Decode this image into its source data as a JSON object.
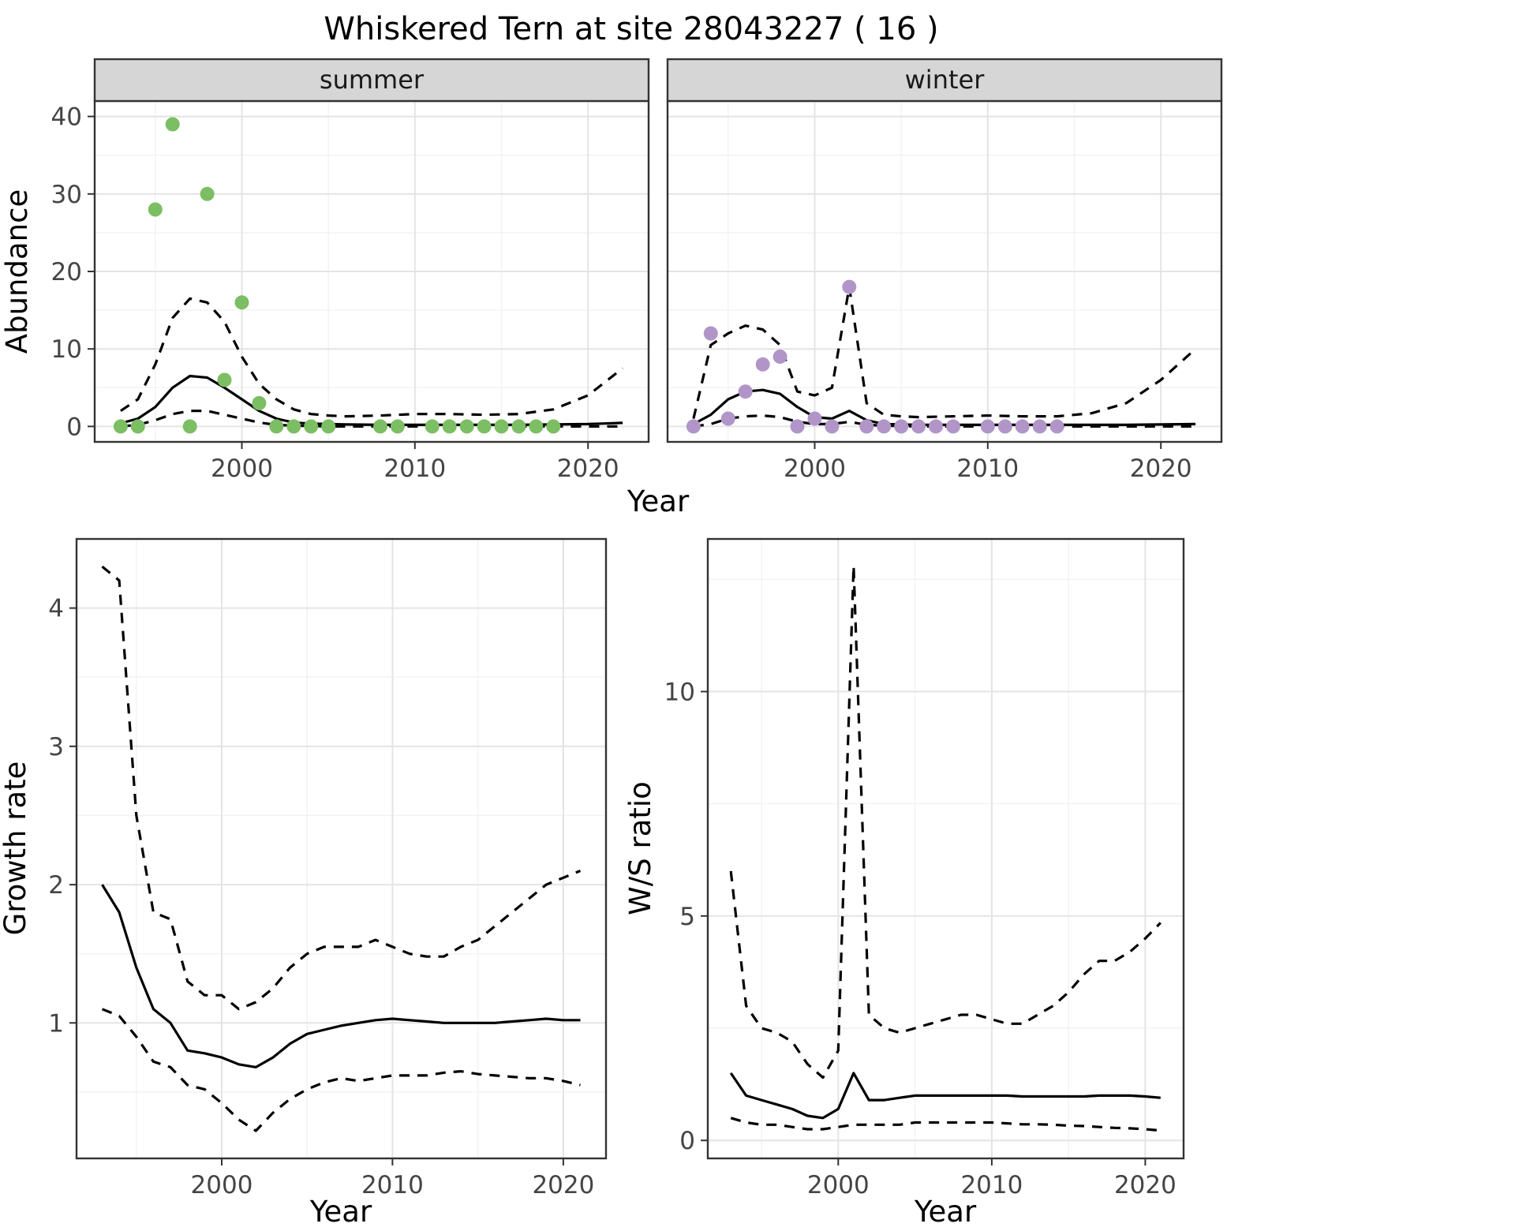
{
  "title": "Whiskered Tern at site 28043227 ( 16 )",
  "axis_labels": {
    "x_top": "Year",
    "x_bottom_left": "Year",
    "x_bottom_right": "Year",
    "y_top": "Abundance",
    "y_bottom_left": "Growth rate",
    "y_bottom_right": "W/S ratio"
  },
  "colors": {
    "summer_points": "#7cbe63",
    "winter_points": "#b195c8",
    "line": "#000000",
    "strip_bg": "#d6d6d6",
    "grid_major": "#e4e4e4",
    "grid_minor": "#f2f2f2",
    "panel_border": "#333333"
  },
  "chart_data": [
    {
      "id": "abundance-summer",
      "type": "scatter",
      "facet": "summer",
      "xlabel": "Year",
      "ylabel": "Abundance",
      "xlim": [
        1991.5,
        2023.5
      ],
      "ylim": [
        -2,
        42
      ],
      "xticks": [
        2000,
        2010,
        2020
      ],
      "yticks": [
        0,
        10,
        20,
        30,
        40
      ],
      "xticks_minor": [
        1995,
        2005,
        2015
      ],
      "yticks_minor": [
        5,
        15,
        25,
        35
      ],
      "point_color": "#7cbe63",
      "points": [
        [
          1993,
          0
        ],
        [
          1994,
          0
        ],
        [
          1995,
          28
        ],
        [
          1996,
          39
        ],
        [
          1997,
          0
        ],
        [
          1998,
          30
        ],
        [
          1999,
          6
        ],
        [
          2000,
          16
        ],
        [
          2001,
          3
        ],
        [
          2002,
          0
        ],
        [
          2003,
          0
        ],
        [
          2004,
          0
        ],
        [
          2005,
          0
        ],
        [
          2008,
          0
        ],
        [
          2009,
          0
        ],
        [
          2011,
          0
        ],
        [
          2012,
          0
        ],
        [
          2013,
          0
        ],
        [
          2014,
          0
        ],
        [
          2015,
          0
        ],
        [
          2016,
          0
        ],
        [
          2017,
          0
        ],
        [
          2018,
          0
        ]
      ],
      "series": [
        {
          "name": "mean",
          "style": "solid",
          "x": [
            1993,
            1994,
            1995,
            1996,
            1997,
            1998,
            1999,
            2000,
            2001,
            2002,
            2003,
            2004,
            2005,
            2006,
            2008,
            2010,
            2012,
            2014,
            2016,
            2018,
            2020,
            2022
          ],
          "y": [
            0.4,
            1,
            2.5,
            5,
            6.5,
            6.3,
            5,
            3.5,
            2,
            1,
            0.5,
            0.35,
            0.3,
            0.25,
            0.2,
            0.2,
            0.2,
            0.2,
            0.2,
            0.25,
            0.3,
            0.45
          ]
        },
        {
          "name": "upper-ci",
          "style": "dashed",
          "x": [
            1993,
            1994,
            1995,
            1996,
            1997,
            1998,
            1999,
            2000,
            2001,
            2002,
            2003,
            2004,
            2005,
            2006,
            2008,
            2010,
            2012,
            2014,
            2016,
            2018,
            2020,
            2022
          ],
          "y": [
            2,
            3.5,
            8,
            14,
            16.5,
            16,
            13.5,
            9,
            5.5,
            3.5,
            2.2,
            1.6,
            1.4,
            1.3,
            1.4,
            1.6,
            1.6,
            1.5,
            1.6,
            2.2,
            4,
            7.5
          ]
        },
        {
          "name": "lower-ci",
          "style": "dashed",
          "x": [
            1993,
            1994,
            1995,
            1996,
            1997,
            1998,
            1999,
            2000,
            2001,
            2002,
            2003,
            2004,
            2005,
            2006,
            2008,
            2010,
            2012,
            2014,
            2016,
            2018,
            2020,
            2022
          ],
          "y": [
            0,
            0.2,
            0.8,
            1.6,
            2,
            2,
            1.5,
            1,
            0.5,
            0.2,
            0.1,
            0.05,
            0,
            0,
            0,
            0,
            0,
            0,
            0,
            0,
            0,
            0
          ]
        }
      ]
    },
    {
      "id": "abundance-winter",
      "type": "scatter",
      "facet": "winter",
      "xlabel": "Year",
      "ylabel": "Abundance",
      "xlim": [
        1991.5,
        2023.5
      ],
      "ylim": [
        -2,
        42
      ],
      "xticks": [
        2000,
        2010,
        2020
      ],
      "yticks": [
        0,
        10,
        20,
        30,
        40
      ],
      "xticks_minor": [
        1995,
        2005,
        2015
      ],
      "yticks_minor": [
        5,
        15,
        25,
        35
      ],
      "point_color": "#b195c8",
      "points": [
        [
          1993,
          0
        ],
        [
          1994,
          12
        ],
        [
          1995,
          1
        ],
        [
          1996,
          4.5
        ],
        [
          1997,
          8
        ],
        [
          1998,
          9
        ],
        [
          1999,
          0
        ],
        [
          2000,
          1
        ],
        [
          2001,
          0
        ],
        [
          2002,
          18
        ],
        [
          2003,
          0
        ],
        [
          2004,
          0
        ],
        [
          2005,
          0
        ],
        [
          2006,
          0
        ],
        [
          2007,
          0
        ],
        [
          2008,
          0
        ],
        [
          2010,
          0
        ],
        [
          2011,
          0
        ],
        [
          2012,
          0
        ],
        [
          2013,
          0
        ],
        [
          2014,
          0
        ]
      ],
      "series": [
        {
          "name": "mean",
          "style": "solid",
          "x": [
            1993,
            1994,
            1995,
            1996,
            1997,
            1998,
            1999,
            2000,
            2001,
            2002,
            2003,
            2004,
            2005,
            2006,
            2008,
            2010,
            2012,
            2014,
            2016,
            2018,
            2020,
            2022
          ],
          "y": [
            0.3,
            1.5,
            3.5,
            4.5,
            4.7,
            4.2,
            2.5,
            1.2,
            1.0,
            2.0,
            0.8,
            0.3,
            0.25,
            0.2,
            0.2,
            0.2,
            0.2,
            0.2,
            0.2,
            0.2,
            0.25,
            0.3
          ]
        },
        {
          "name": "upper-ci",
          "style": "dashed",
          "x": [
            1993,
            1994,
            1995,
            1996,
            1997,
            1998,
            1999,
            2000,
            2001,
            2002,
            2003,
            2004,
            2005,
            2006,
            2008,
            2010,
            2012,
            2014,
            2016,
            2018,
            2020,
            2022
          ],
          "y": [
            1,
            10.5,
            12,
            13,
            12.5,
            10.5,
            4.5,
            4,
            5,
            18,
            3,
            1.5,
            1.3,
            1.2,
            1.3,
            1.4,
            1.3,
            1.3,
            1.7,
            3,
            6,
            10
          ]
        },
        {
          "name": "lower-ci",
          "style": "dashed",
          "x": [
            1993,
            1994,
            1995,
            1996,
            1997,
            1998,
            1999,
            2000,
            2001,
            2002,
            2003,
            2004,
            2005,
            2006,
            2008,
            2010,
            2012,
            2014,
            2016,
            2018,
            2020,
            2022
          ],
          "y": [
            0,
            0.3,
            1,
            1.3,
            1.4,
            1.2,
            0.6,
            0.3,
            0.3,
            0.6,
            0.2,
            0.1,
            0.05,
            0,
            0,
            0,
            0,
            0,
            0,
            0,
            0,
            0
          ]
        }
      ]
    },
    {
      "id": "growth-rate",
      "type": "line",
      "facet": null,
      "xlabel": "Year",
      "ylabel": "Growth rate",
      "xlim": [
        1991.5,
        2022.5
      ],
      "ylim": [
        0.02,
        4.5
      ],
      "xticks": [
        2000,
        2010,
        2020
      ],
      "yticks": [
        1,
        2,
        3,
        4
      ],
      "xticks_minor": [
        1995,
        2005,
        2015
      ],
      "yticks_minor": [
        0.5,
        1.5,
        2.5,
        3.5
      ],
      "series": [
        {
          "name": "mean",
          "style": "solid",
          "x": [
            1993,
            1994,
            1995,
            1996,
            1997,
            1998,
            1999,
            2000,
            2001,
            2002,
            2003,
            2004,
            2005,
            2006,
            2007,
            2008,
            2009,
            2010,
            2011,
            2012,
            2013,
            2014,
            2015,
            2016,
            2017,
            2018,
            2019,
            2020,
            2021
          ],
          "y": [
            2.0,
            1.8,
            1.4,
            1.1,
            1.0,
            0.8,
            0.78,
            0.75,
            0.7,
            0.68,
            0.75,
            0.85,
            0.92,
            0.95,
            0.98,
            1.0,
            1.02,
            1.03,
            1.02,
            1.01,
            1.0,
            1.0,
            1.0,
            1.0,
            1.01,
            1.02,
            1.03,
            1.02,
            1.02
          ]
        },
        {
          "name": "upper-ci",
          "style": "dashed",
          "x": [
            1993,
            1994,
            1995,
            1996,
            1997,
            1998,
            1999,
            2000,
            2001,
            2002,
            2003,
            2004,
            2005,
            2006,
            2007,
            2008,
            2009,
            2010,
            2011,
            2012,
            2013,
            2014,
            2015,
            2016,
            2017,
            2018,
            2019,
            2020,
            2021
          ],
          "y": [
            4.3,
            4.2,
            2.5,
            1.8,
            1.75,
            1.3,
            1.2,
            1.2,
            1.1,
            1.15,
            1.25,
            1.4,
            1.5,
            1.55,
            1.55,
            1.55,
            1.6,
            1.55,
            1.5,
            1.48,
            1.48,
            1.55,
            1.6,
            1.7,
            1.8,
            1.9,
            2.0,
            2.05,
            2.1
          ]
        },
        {
          "name": "lower-ci",
          "style": "dashed",
          "x": [
            1993,
            1994,
            1995,
            1996,
            1997,
            1998,
            1999,
            2000,
            2001,
            2002,
            2003,
            2004,
            2005,
            2006,
            2007,
            2008,
            2009,
            2010,
            2011,
            2012,
            2013,
            2014,
            2015,
            2016,
            2017,
            2018,
            2019,
            2020,
            2021
          ],
          "y": [
            1.1,
            1.05,
            0.9,
            0.72,
            0.68,
            0.55,
            0.52,
            0.42,
            0.3,
            0.22,
            0.35,
            0.45,
            0.52,
            0.57,
            0.6,
            0.58,
            0.6,
            0.62,
            0.62,
            0.62,
            0.64,
            0.65,
            0.63,
            0.62,
            0.61,
            0.6,
            0.6,
            0.58,
            0.55
          ]
        }
      ]
    },
    {
      "id": "ws-ratio",
      "type": "line",
      "facet": null,
      "xlabel": "Year",
      "ylabel": "W/S ratio",
      "xlim": [
        1991.5,
        2022.5
      ],
      "ylim": [
        -0.4,
        13.4
      ],
      "xticks": [
        2000,
        2010,
        2020
      ],
      "yticks": [
        0,
        5,
        10
      ],
      "xticks_minor": [
        1995,
        2005,
        2015
      ],
      "yticks_minor": [
        2.5,
        7.5,
        12.5
      ],
      "series": [
        {
          "name": "mean",
          "style": "solid",
          "x": [
            1993,
            1994,
            1995,
            1996,
            1997,
            1998,
            1999,
            2000,
            2001,
            2002,
            2003,
            2004,
            2005,
            2006,
            2007,
            2008,
            2009,
            2010,
            2011,
            2012,
            2013,
            2014,
            2015,
            2016,
            2017,
            2018,
            2019,
            2020,
            2021
          ],
          "y": [
            1.5,
            1.0,
            0.9,
            0.8,
            0.7,
            0.55,
            0.5,
            0.7,
            1.5,
            0.9,
            0.9,
            0.95,
            1.0,
            1.0,
            1.0,
            1.0,
            1.0,
            1.0,
            1.0,
            0.98,
            0.98,
            0.98,
            0.98,
            0.98,
            1.0,
            1.0,
            1.0,
            0.98,
            0.95
          ]
        },
        {
          "name": "upper-ci",
          "style": "dashed",
          "x": [
            1993,
            1994,
            1995,
            1996,
            1997,
            1998,
            1999,
            2000,
            2001,
            2002,
            2003,
            2004,
            2005,
            2006,
            2007,
            2008,
            2009,
            2010,
            2011,
            2012,
            2013,
            2014,
            2015,
            2016,
            2017,
            2018,
            2019,
            2020,
            2021
          ],
          "y": [
            6.0,
            3.0,
            2.5,
            2.4,
            2.2,
            1.7,
            1.4,
            2.0,
            12.8,
            2.8,
            2.5,
            2.4,
            2.5,
            2.6,
            2.7,
            2.8,
            2.8,
            2.7,
            2.6,
            2.6,
            2.8,
            3.0,
            3.3,
            3.7,
            4.0,
            4.0,
            4.2,
            4.5,
            4.85
          ]
        },
        {
          "name": "lower-ci",
          "style": "dashed",
          "x": [
            1993,
            1994,
            1995,
            1996,
            1997,
            1998,
            1999,
            2000,
            2001,
            2002,
            2003,
            2004,
            2005,
            2006,
            2007,
            2008,
            2009,
            2010,
            2011,
            2012,
            2013,
            2014,
            2015,
            2016,
            2017,
            2018,
            2019,
            2020,
            2021
          ],
          "y": [
            0.5,
            0.4,
            0.35,
            0.35,
            0.3,
            0.25,
            0.25,
            0.3,
            0.35,
            0.35,
            0.35,
            0.35,
            0.4,
            0.4,
            0.4,
            0.4,
            0.4,
            0.4,
            0.38,
            0.36,
            0.36,
            0.35,
            0.33,
            0.32,
            0.3,
            0.28,
            0.27,
            0.25,
            0.22
          ]
        }
      ]
    }
  ]
}
